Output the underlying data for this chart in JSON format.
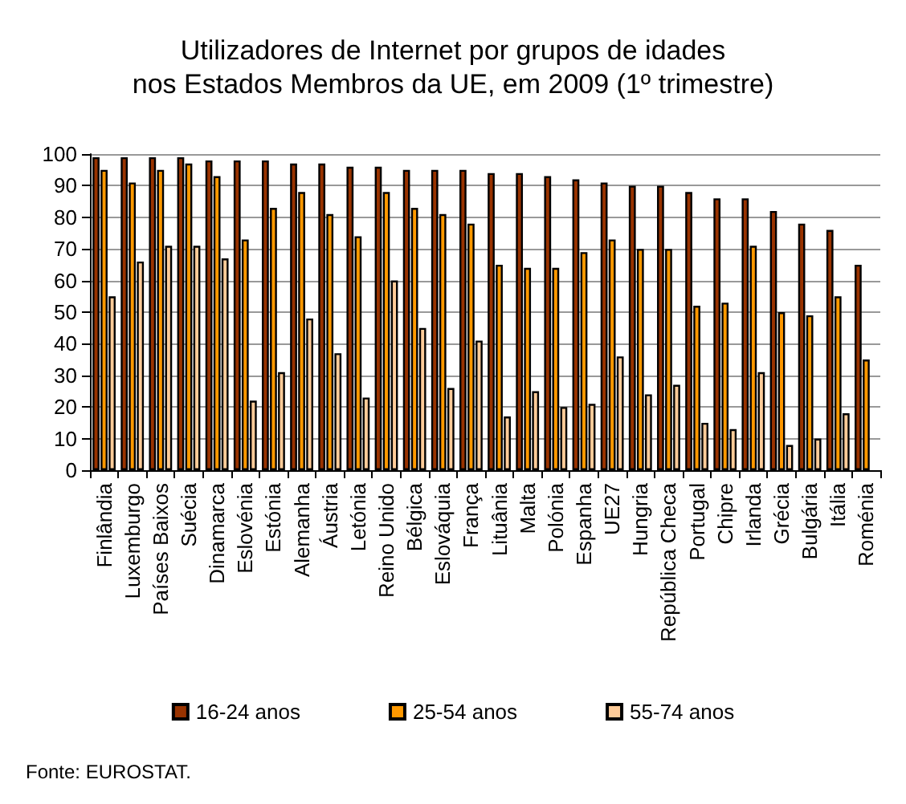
{
  "chart_data": {
    "type": "bar",
    "title": "Utilizadores de Internet por grupos de idades\nnos Estados Membros da UE, em 2009 (1º trimestre)",
    "categories": [
      "Finlândia",
      "Luxemburgo",
      "Países Baixos",
      "Suécia",
      "Dinamarca",
      "Eslovénia",
      "Estónia",
      "Alemanha",
      "Áustria",
      "Letónia",
      "Reino Unido",
      "Bélgica",
      "Eslováquia",
      "França",
      "Lituânia",
      "Malta",
      "Polónia",
      "Espanha",
      "UE27",
      "Hungria",
      "República Checa",
      "Portugal",
      "Chipre",
      "Irlanda",
      "Grécia",
      "Bulgária",
      "Itália",
      "Roménia"
    ],
    "series": [
      {
        "name": "16-24 anos",
        "color": "#993300",
        "values": [
          99,
          99,
          99,
          99,
          98,
          98,
          98,
          97,
          97,
          96,
          96,
          95,
          95,
          95,
          94,
          94,
          93,
          92,
          91,
          90,
          90,
          88,
          86,
          86,
          82,
          78,
          76,
          65
        ]
      },
      {
        "name": "25-54 anos",
        "color": "#ff9900",
        "values": [
          95,
          91,
          95,
          97,
          93,
          73,
          83,
          88,
          81,
          74,
          88,
          83,
          81,
          78,
          65,
          64,
          64,
          69,
          73,
          70,
          70,
          52,
          53,
          71,
          50,
          49,
          55,
          35
        ]
      },
      {
        "name": "55-74 anos",
        "color": "#ffcc99",
        "values": [
          55,
          66,
          71,
          71,
          67,
          22,
          31,
          48,
          37,
          23,
          60,
          45,
          26,
          41,
          17,
          25,
          20,
          21,
          36,
          24,
          27,
          15,
          13,
          31,
          8,
          10,
          18,
          null
        ]
      }
    ],
    "ylim": [
      0,
      100
    ],
    "yticks": [
      0,
      10,
      20,
      30,
      40,
      50,
      60,
      70,
      80,
      90,
      100
    ],
    "grid": "y",
    "legend": "bottom",
    "annotations": [
      "Fonte: EUROSTAT."
    ]
  }
}
